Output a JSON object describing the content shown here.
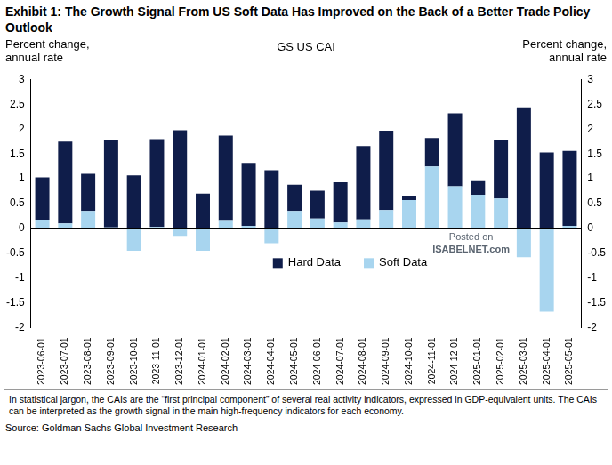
{
  "chart_data": {
    "type": "bar",
    "title": "Exhibit 1: The Growth Signal From US Soft Data Has Improved on the Back of a Better Trade Policy Outlook",
    "subtitle": "GS US CAI",
    "ylabel": [
      "Percent change,",
      "annual rate"
    ],
    "y2label": [
      "Percent change,",
      "annual rate"
    ],
    "categories": [
      "2023-06-01",
      "2023-07-01",
      "2023-08-01",
      "2023-09-01",
      "2023-10-01",
      "2023-11-01",
      "2023-12-01",
      "2024-01-01",
      "2024-02-01",
      "2024-03-01",
      "2024-04-01",
      "2024-05-01",
      "2024-06-01",
      "2024-07-01",
      "2024-08-01",
      "2024-09-01",
      "2024-10-01",
      "2024-11-01",
      "2024-12-01",
      "2025-01-01",
      "2025-02-01",
      "2025-03-01",
      "2025-04-01",
      "2025-05-01"
    ],
    "series": [
      {
        "name": "Hard Data",
        "color": "#0f1d4a",
        "values": [
          0.86,
          1.65,
          0.75,
          1.76,
          1.07,
          1.77,
          1.98,
          0.7,
          1.72,
          1.27,
          1.17,
          0.53,
          0.56,
          0.81,
          1.48,
          1.6,
          0.08,
          0.57,
          1.47,
          0.27,
          1.18,
          2.44,
          1.53,
          1.51
        ]
      },
      {
        "name": "Soft Data",
        "color": "#a8d5ef",
        "values": [
          0.17,
          0.1,
          0.35,
          0.02,
          -0.45,
          0.03,
          -0.15,
          -0.45,
          0.15,
          0.05,
          -0.3,
          0.35,
          0.2,
          0.12,
          0.18,
          0.37,
          0.57,
          1.25,
          0.85,
          0.68,
          0.6,
          -0.58,
          -1.68,
          0.05
        ]
      }
    ],
    "stacked": true,
    "ylim": [
      -2,
      3
    ],
    "yticks": [
      -2,
      -1.5,
      -1,
      -0.5,
      0,
      0.5,
      1,
      1.5,
      2,
      2.5,
      3
    ],
    "y2lim": [
      -2,
      3
    ],
    "y2ticks": [
      -2,
      -1.5,
      -1,
      -0.5,
      0,
      0.5,
      1,
      1.5,
      2,
      2.5,
      3
    ],
    "grid": false,
    "legend": "lower center",
    "annotations": [
      {
        "text": "Posted on"
      },
      {
        "text": "ISABELNET.com"
      }
    ],
    "footnote": "In statistical jargon, the CAIs are the “first principal component” of several real activity indicators, expressed in GDP-equivalent units. The CAIs can be interpreted as the growth signal in the main high-frequency indicators for each economy.",
    "source": "Source: Goldman Sachs Global Investment Research"
  }
}
